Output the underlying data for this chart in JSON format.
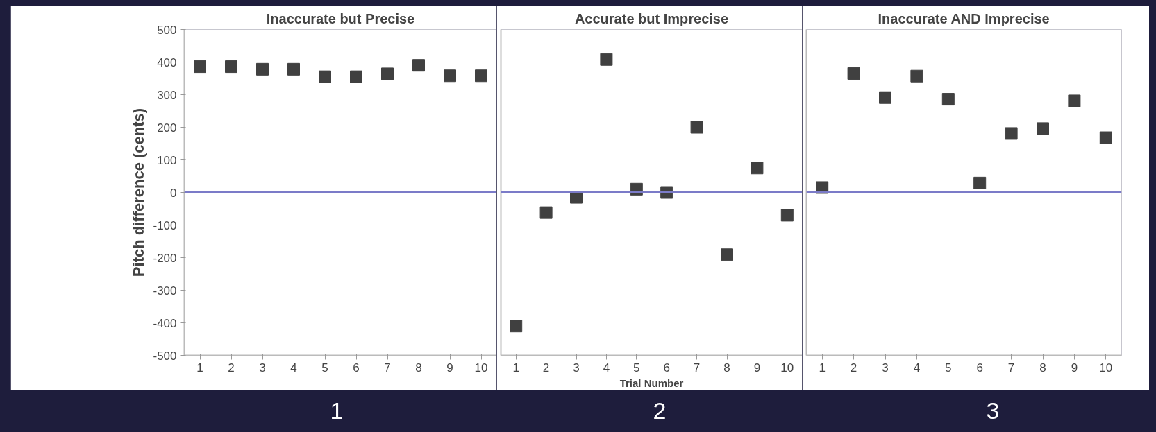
{
  "chart_data": [
    {
      "type": "scatter",
      "title": "Inaccurate but Precise",
      "ylabel": "Pitch difference (cents)",
      "marker": "square",
      "x": [
        1,
        2,
        3,
        4,
        5,
        6,
        7,
        8,
        9,
        10
      ],
      "series": [
        {
          "color": "#404040",
          "values": [
            386,
            386,
            378,
            378,
            355,
            355,
            364,
            390,
            358,
            358
          ]
        }
      ],
      "xlim": [
        0.5,
        10.5
      ],
      "xticks": [
        1,
        2,
        3,
        4,
        5,
        6,
        7,
        8,
        9,
        10
      ],
      "ylim": [
        -500,
        500
      ],
      "yticks": [
        -500,
        -400,
        -300,
        -200,
        -100,
        0,
        100,
        200,
        300,
        400,
        500
      ],
      "ref_lines": [
        {
          "axis": "y",
          "value": 0,
          "color": "#7b7bc8"
        }
      ],
      "annotations": [
        "1"
      ]
    },
    {
      "type": "scatter",
      "title": "Accurate but Imprecise",
      "xlabel": "Trial Number",
      "marker": "square",
      "x": [
        1,
        2,
        3,
        4,
        5,
        6,
        7,
        8,
        9,
        10
      ],
      "series": [
        {
          "color": "#404040",
          "values": [
            -410,
            -62,
            -15,
            408,
            10,
            0,
            200,
            -191,
            75,
            -70
          ]
        }
      ],
      "xlim": [
        0.5,
        10.5
      ],
      "xticks": [
        1,
        2,
        3,
        4,
        5,
        6,
        7,
        8,
        9,
        10
      ],
      "ylim": [
        -500,
        500
      ],
      "yticks": [
        -500,
        -400,
        -300,
        -200,
        -100,
        0,
        100,
        200,
        300,
        400,
        500
      ],
      "tick_labels": "x",
      "ref_lines": [
        {
          "axis": "y",
          "value": 0,
          "color": "#7b7bc8"
        }
      ],
      "annotations": [
        "2"
      ]
    },
    {
      "type": "scatter",
      "title": "Inaccurate AND Imprecise",
      "marker": "square",
      "x": [
        1,
        2,
        3,
        4,
        5,
        6,
        7,
        8,
        9,
        10
      ],
      "series": [
        {
          "color": "#404040",
          "values": [
            15,
            365,
            291,
            357,
            286,
            29,
            181,
            196,
            281,
            168
          ]
        }
      ],
      "xlim": [
        0.5,
        10.5
      ],
      "xticks": [
        1,
        2,
        3,
        4,
        5,
        6,
        7,
        8,
        9,
        10
      ],
      "ylim": [
        -500,
        500
      ],
      "yticks": [
        -500,
        -400,
        -300,
        -200,
        -100,
        0,
        100,
        200,
        300,
        400,
        500
      ],
      "tick_labels": "x",
      "ref_lines": [
        {
          "axis": "y",
          "value": 0,
          "color": "#7b7bc8"
        }
      ],
      "annotations": [
        "3"
      ]
    }
  ]
}
